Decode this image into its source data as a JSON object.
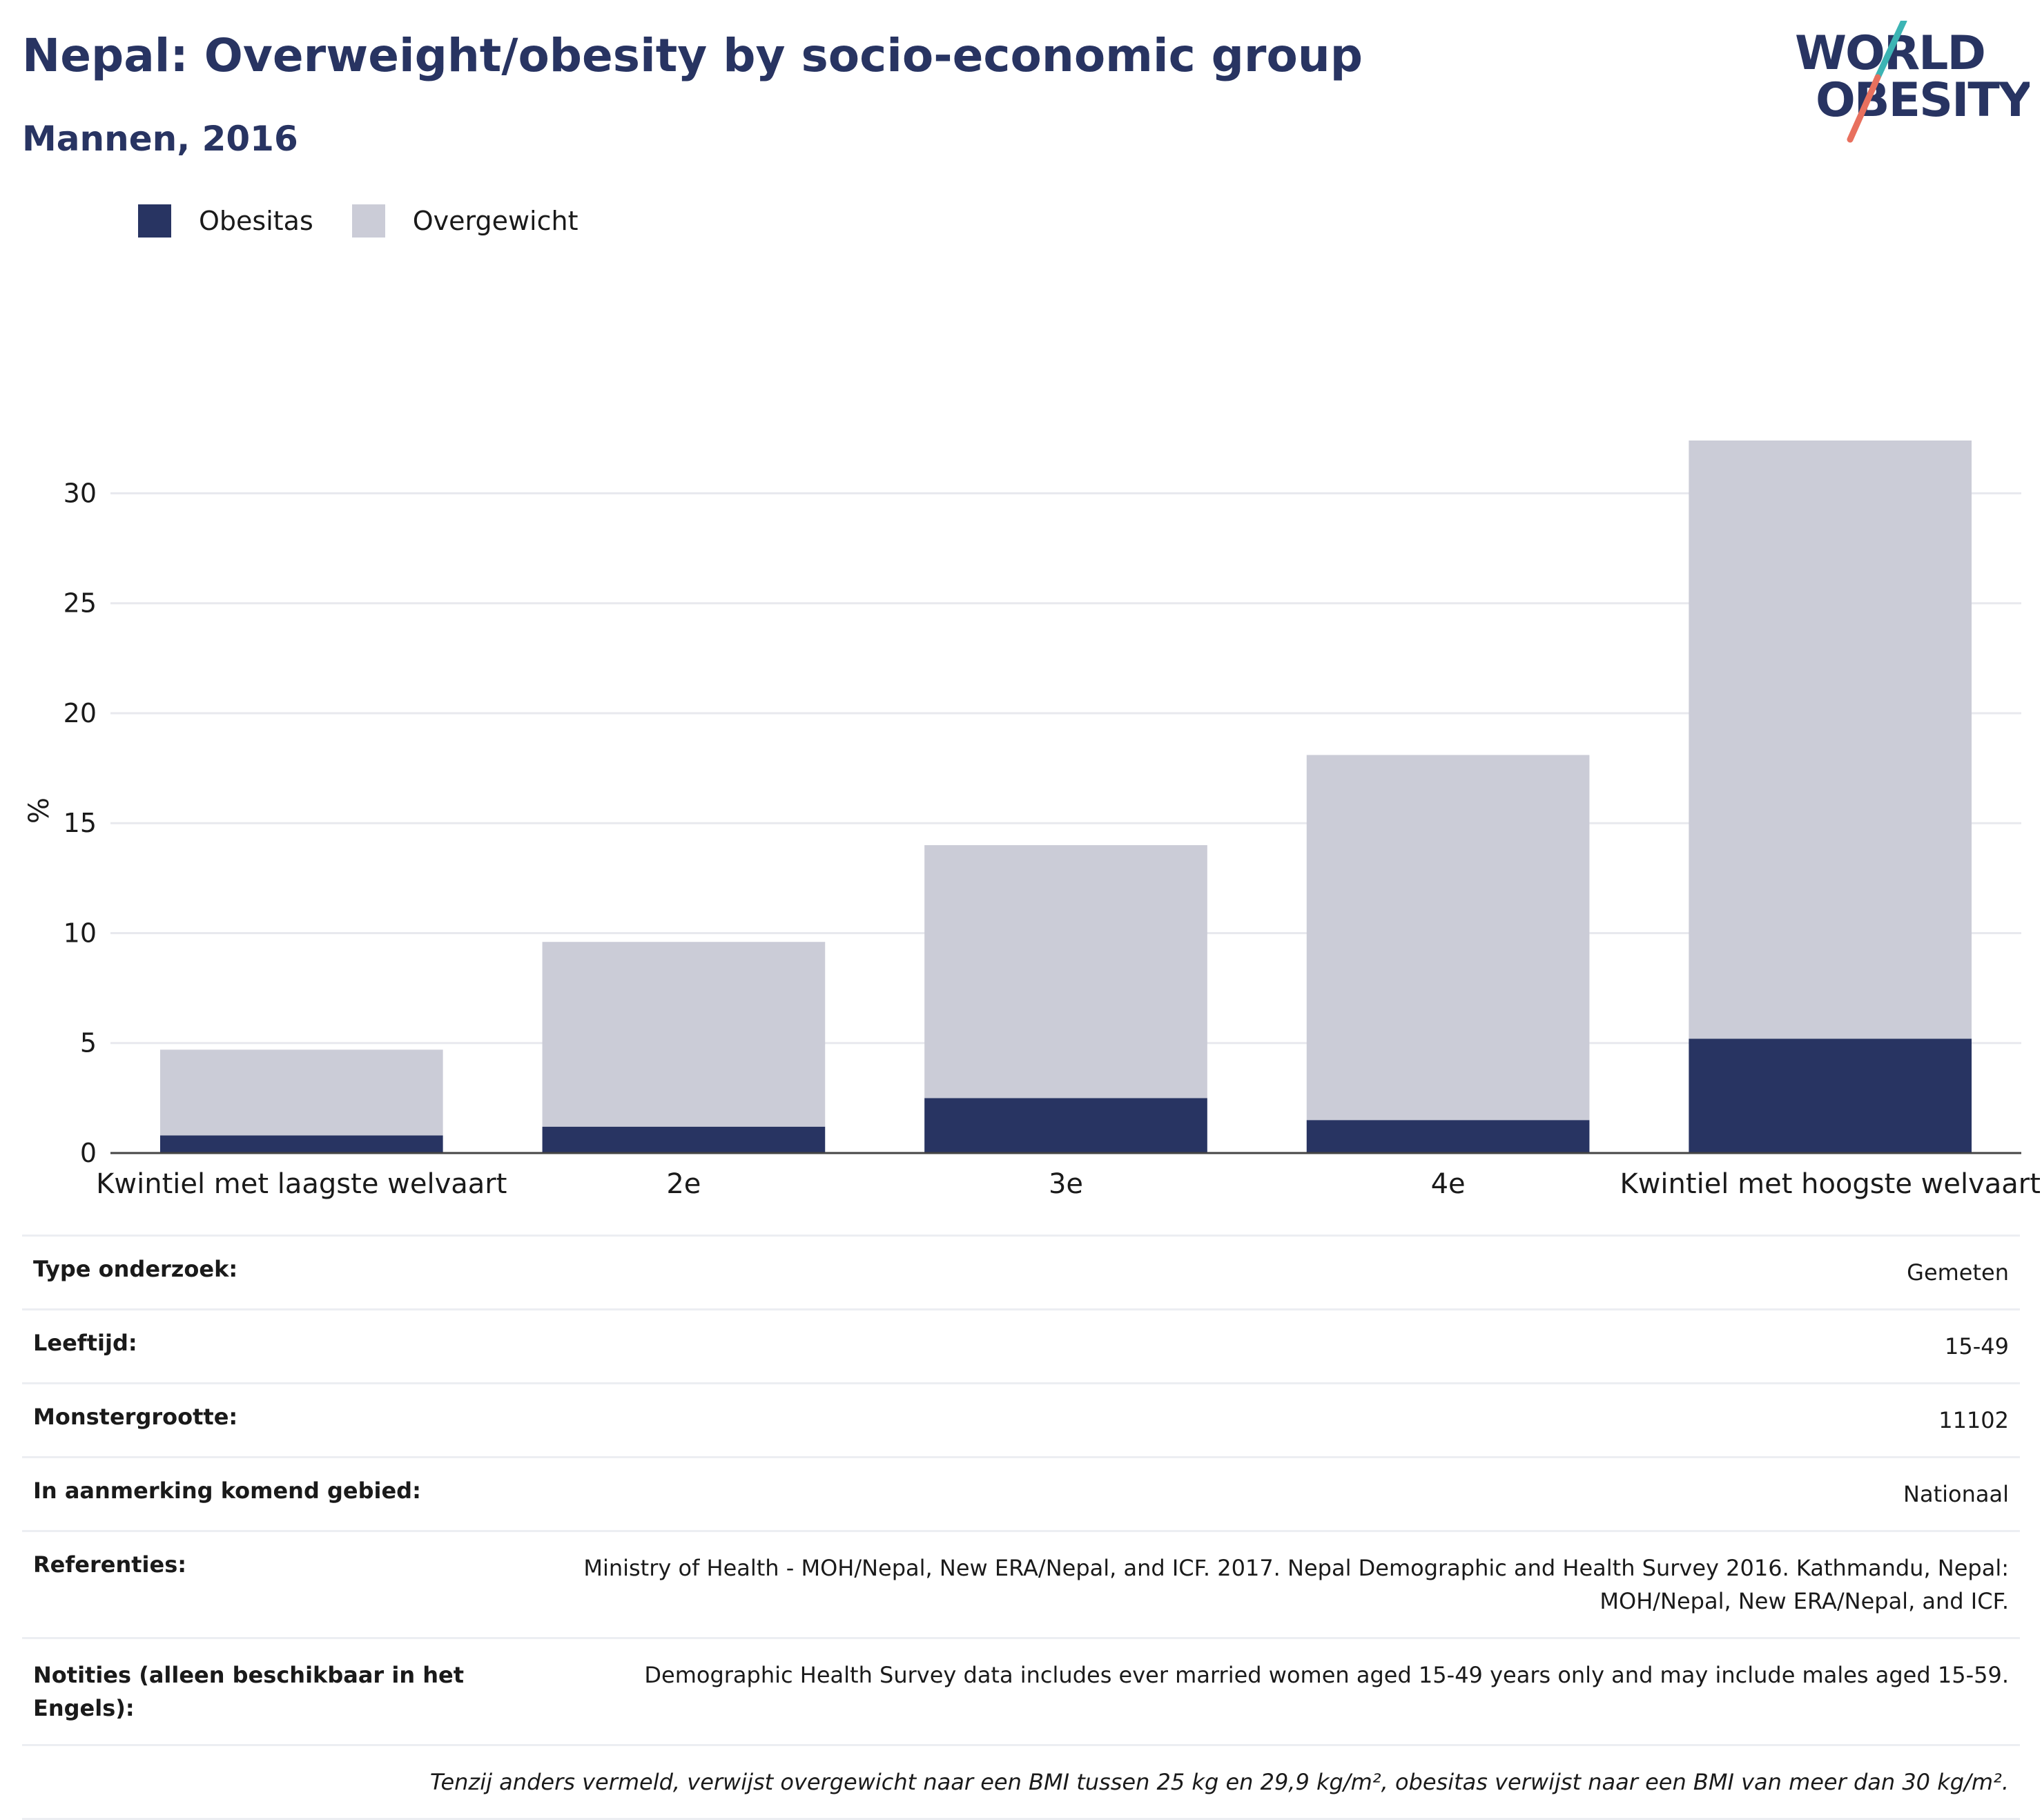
{
  "header": {
    "title": "Nepal: Overweight/obesity by socio-economic group",
    "subtitle": "Mannen, 2016"
  },
  "logo": {
    "line1": "WORLD",
    "line2": "OBESITY",
    "colors": {
      "text": "#283462",
      "slash_top": "#3cb4b4",
      "slash_bottom": "#e8705e"
    }
  },
  "legend": [
    {
      "label": "Obesitas",
      "color": "#283462"
    },
    {
      "label": "Overgewicht",
      "color": "#cbccd7"
    }
  ],
  "chart_data": {
    "type": "bar",
    "stacked": true,
    "categories": [
      "Kwintiel met laagste welvaart",
      "2e",
      "3e",
      "4e",
      "Kwintiel met hoogste welvaart"
    ],
    "series": [
      {
        "name": "Obesitas",
        "color": "#283462",
        "values": [
          0.8,
          1.2,
          2.5,
          1.5,
          5.2
        ]
      },
      {
        "name": "Overgewicht",
        "color": "#cbccd7",
        "values": [
          3.9,
          8.4,
          11.5,
          16.6,
          27.2
        ]
      }
    ],
    "totals": [
      4.7,
      9.6,
      14.0,
      18.1,
      32.4
    ],
    "ylabel": "%",
    "xlabel": "",
    "ylim": [
      0,
      32.4
    ],
    "yticks": [
      0,
      5,
      10,
      15,
      20,
      25,
      30
    ],
    "grid": true,
    "legend_position": "top-left"
  },
  "info": {
    "rows": [
      {
        "key": "Type onderzoek:",
        "value": "Gemeten"
      },
      {
        "key": "Leeftijd:",
        "value": "15-49"
      },
      {
        "key": "Monstergrootte:",
        "value": "11102"
      },
      {
        "key": "In aanmerking komend gebied:",
        "value": "Nationaal"
      },
      {
        "key": "Referenties:",
        "value_lines": [
          "Ministry of Health - MOH/Nepal, New ERA/Nepal, and ICF. 2017. Nepal Demographic and Health Survey 2016. Kathmandu, Nepal:",
          "MOH/Nepal, New ERA/Nepal, and ICF."
        ]
      },
      {
        "key_lines": [
          "Notities (alleen beschikbaar in het",
          "Engels):"
        ],
        "value": "Demographic Health Survey data includes ever married women aged 15-49 years only and may include males aged 15-59."
      }
    ],
    "footnote": "Tenzij anders vermeld, verwijst overgewicht naar een BMI tussen 25 kg en 29,9 kg/m², obesitas verwijst naar een BMI van meer dan 30 kg/m²."
  }
}
